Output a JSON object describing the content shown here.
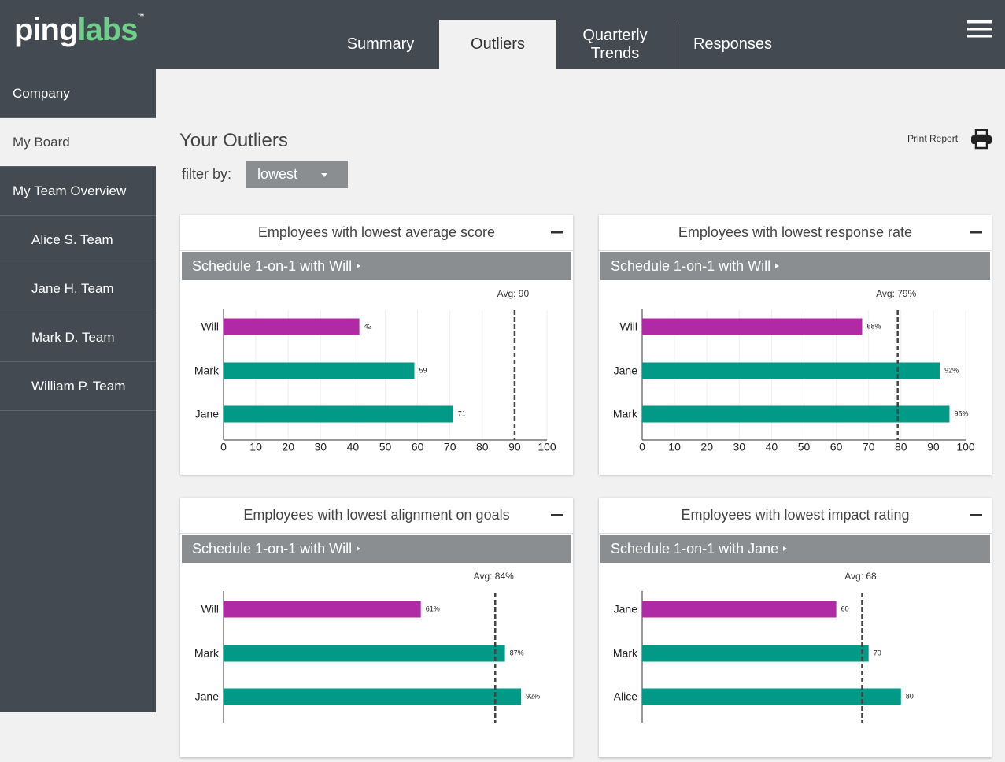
{
  "header": {
    "logo": {
      "ping": "ping",
      "labs": "labs",
      "tm": "™"
    },
    "tabs": [
      "Summary",
      "Outliers",
      "Quarterly Trends",
      "Responses"
    ],
    "active_tab": 1
  },
  "sidebar": {
    "items": [
      "Company",
      "My Board",
      "My Team Overview"
    ],
    "active": 1,
    "team_items": [
      "Alice S. Team",
      "Jane H. Team",
      "Mark D. Team",
      "William P. Team"
    ]
  },
  "main": {
    "title": "Your Outliers",
    "filter_label": "filter by:",
    "filter_value": "lowest",
    "print_label": "Print Report"
  },
  "chart_data": [
    {
      "type": "bar",
      "title": "Employees with lowest average score",
      "subtitle": "Schedule 1-on-1 with Will",
      "categories": [
        "Will",
        "Mark",
        "Jane"
      ],
      "values": [
        42,
        59,
        71
      ],
      "colors": [
        "#b02aa6",
        "#009a87",
        "#009a87"
      ],
      "avg": 90,
      "avg_label": "Avg: 90",
      "xlim": [
        0,
        100
      ],
      "xticks": [
        0,
        10,
        20,
        30,
        40,
        50,
        60,
        70,
        80,
        90,
        100
      ],
      "grid": true
    },
    {
      "type": "bar",
      "title": "Employees with lowest response rate",
      "subtitle": "Schedule 1-on-1 with Will",
      "categories": [
        "Will",
        "Jane",
        "Mark"
      ],
      "values": [
        68,
        92,
        95
      ],
      "value_labels": [
        "68%",
        "92%",
        "95%"
      ],
      "colors": [
        "#b02aa6",
        "#009a87",
        "#009a87"
      ],
      "avg": 79,
      "avg_label": "Avg: 79%",
      "xlim": [
        0,
        100
      ],
      "xticks": [
        0,
        10,
        20,
        30,
        40,
        50,
        60,
        70,
        80,
        90,
        100
      ],
      "grid": true
    },
    {
      "type": "bar",
      "title": "Employees with lowest alignment on goals",
      "subtitle": "Schedule 1-on-1 with Will",
      "categories": [
        "Will",
        "Mark",
        "Jane"
      ],
      "values": [
        61,
        87,
        92
      ],
      "value_labels": [
        "61%",
        "87%",
        "92%"
      ],
      "colors": [
        "#b02aa6",
        "#009a87",
        "#009a87"
      ],
      "avg": 84,
      "avg_label": "Avg: 84%",
      "xlim": [
        0,
        100
      ],
      "grid": true
    },
    {
      "type": "bar",
      "title": "Employees with lowest impact rating",
      "subtitle": "Schedule 1-on-1 with Jane",
      "categories": [
        "Jane",
        "Mark",
        "Alice"
      ],
      "values": [
        60,
        70,
        80
      ],
      "colors": [
        "#b02aa6",
        "#009a87",
        "#009a87"
      ],
      "avg": 68,
      "avg_label": "Avg: 68",
      "xlim": [
        0,
        100
      ],
      "grid": true
    }
  ]
}
